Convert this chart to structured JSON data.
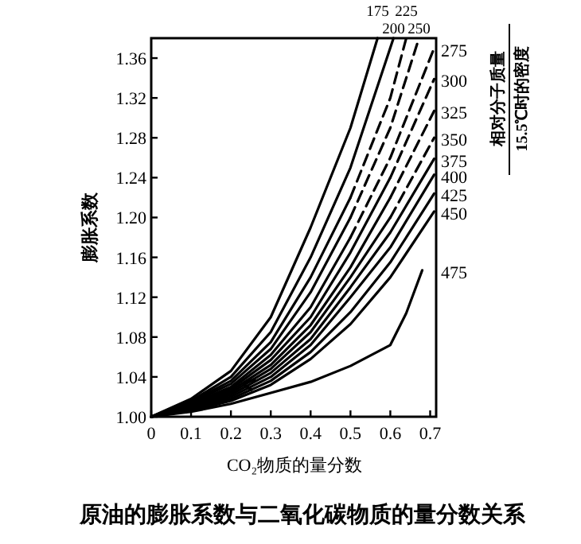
{
  "chart_data": {
    "type": "line",
    "title": "原油的膨胀系数与二氧化碳物质的量分数关系",
    "xlabel": "CO₂物质的量分数",
    "ylabel": "膨胀系数",
    "legend_title": "相对分子质量\n15.5℃时的密度",
    "xlim": [
      0,
      0.715
    ],
    "ylim": [
      1.0,
      1.38
    ],
    "xticks": [
      0,
      0.1,
      0.2,
      0.3,
      0.4,
      0.5,
      0.6,
      0.7
    ],
    "yticks": [
      {
        "value": 1.0,
        "label": "1.00"
      },
      1.04,
      1.08,
      {
        "value": 1.12,
        "label": "1.12"
      },
      1.16,
      {
        "value": 1.2,
        "label": "1.20"
      },
      1.24,
      1.28,
      1.32,
      1.36
    ],
    "grid": false,
    "line_style": "solid",
    "series": [
      {
        "name": "175",
        "color": "#000000",
        "x": [
          0,
          0.1,
          0.2,
          0.3,
          0.4,
          0.5,
          0.568
        ],
        "values": [
          1.0,
          1.018,
          1.046,
          1.1,
          1.19,
          1.29,
          1.38
        ]
      },
      {
        "name": "200",
        "color": "#000000",
        "x": [
          0,
          0.1,
          0.2,
          0.3,
          0.4,
          0.5,
          0.608
        ],
        "values": [
          1.0,
          1.016,
          1.04,
          1.085,
          1.16,
          1.25,
          1.38
        ]
      },
      {
        "color": "#000000",
        "x": [
          0,
          0.1,
          0.2,
          0.3,
          0.4,
          0.5
        ],
        "values": [
          1.0,
          1.015,
          1.036,
          1.075,
          1.14,
          1.22
        ]
      },
      {
        "name": "225",
        "color": "#000000",
        "line_style": "dashed",
        "x": [
          0.5,
          0.6,
          0.64
        ],
        "values": [
          1.22,
          1.32,
          1.38
        ]
      },
      {
        "color": "#000000",
        "x": [
          0,
          0.1,
          0.2,
          0.3,
          0.4,
          0.5
        ],
        "values": [
          1.0,
          1.014,
          1.033,
          1.068,
          1.125,
          1.2
        ]
      },
      {
        "name": "250",
        "color": "#000000",
        "line_style": "dashed",
        "x": [
          0.5,
          0.6,
          0.672
        ],
        "values": [
          1.2,
          1.29,
          1.38
        ]
      },
      {
        "color": "#000000",
        "x": [
          0,
          0.1,
          0.2,
          0.3,
          0.4,
          0.5
        ],
        "values": [
          1.0,
          1.013,
          1.03,
          1.062,
          1.11,
          1.18
        ]
      },
      {
        "name": "275",
        "color": "#000000",
        "line_style": "dashed",
        "x": [
          0.5,
          0.6,
          0.71
        ],
        "values": [
          1.18,
          1.26,
          1.37
        ]
      },
      {
        "color": "#000000",
        "x": [
          0,
          0.1,
          0.2,
          0.3,
          0.4,
          0.5,
          0.6
        ],
        "values": [
          1.0,
          1.012,
          1.028,
          1.057,
          1.1,
          1.165,
          1.24
        ]
      },
      {
        "name": "300",
        "color": "#000000",
        "line_style": "dashed",
        "x": [
          0.6,
          0.71
        ],
        "values": [
          1.24,
          1.339
        ]
      },
      {
        "color": "#000000",
        "x": [
          0,
          0.1,
          0.2,
          0.3,
          0.4,
          0.5,
          0.6
        ],
        "values": [
          1.0,
          1.011,
          1.026,
          1.052,
          1.092,
          1.15,
          1.22
        ]
      },
      {
        "name": "325",
        "color": "#000000",
        "line_style": "dashed",
        "x": [
          0.6,
          0.71
        ],
        "values": [
          1.22,
          1.307
        ]
      },
      {
        "color": "#000000",
        "x": [
          0,
          0.1,
          0.2,
          0.3,
          0.4,
          0.5,
          0.6
        ],
        "values": [
          1.0,
          1.01,
          1.024,
          1.048,
          1.085,
          1.14,
          1.2
        ]
      },
      {
        "name": "350",
        "color": "#000000",
        "line_style": "dashed",
        "x": [
          0.6,
          0.71
        ],
        "values": [
          1.2,
          1.28
        ]
      },
      {
        "name": "375",
        "color": "#000000",
        "x": [
          0,
          0.1,
          0.2,
          0.3,
          0.4,
          0.5,
          0.6,
          0.71
        ],
        "values": [
          1.0,
          1.009,
          1.022,
          1.044,
          1.078,
          1.13,
          1.185,
          1.259
        ]
      },
      {
        "name": "400",
        "color": "#000000",
        "x": [
          0,
          0.1,
          0.2,
          0.3,
          0.4,
          0.5,
          0.6,
          0.71
        ],
        "values": [
          1.0,
          1.008,
          1.02,
          1.04,
          1.072,
          1.12,
          1.17,
          1.243
        ]
      },
      {
        "name": "425",
        "color": "#000000",
        "x": [
          0,
          0.1,
          0.2,
          0.3,
          0.4,
          0.5,
          0.6,
          0.71
        ],
        "values": [
          1.0,
          1.007,
          1.018,
          1.036,
          1.065,
          1.105,
          1.155,
          1.224
        ]
      },
      {
        "name": "450",
        "color": "#000000",
        "x": [
          0,
          0.1,
          0.2,
          0.3,
          0.4,
          0.5,
          0.6,
          0.71
        ],
        "values": [
          1.0,
          1.006,
          1.016,
          1.032,
          1.058,
          1.093,
          1.14,
          1.206
        ]
      },
      {
        "name": "475",
        "color": "#000000",
        "x": [
          0,
          0.1,
          0.2,
          0.3,
          0.4,
          0.5,
          0.6,
          0.64,
          0.68
        ],
        "values": [
          1.0,
          1.005,
          1.013,
          1.024,
          1.035,
          1.051,
          1.072,
          1.104,
          1.147
        ]
      }
    ]
  }
}
